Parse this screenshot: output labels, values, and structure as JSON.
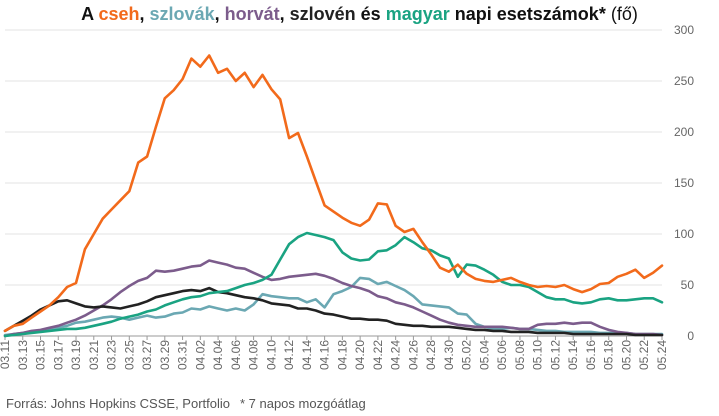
{
  "title": {
    "prefix": "A ",
    "cz": "cseh",
    "sep1": ", ",
    "sk": "szlovák",
    "sep2": ", ",
    "hr": "horvát",
    "sep3": ", ",
    "si": "szlovén",
    "and": " és ",
    "hu": "magyar",
    "tail_bold": " napi esetszámok*",
    "tail_normal": " (fő)"
  },
  "footer": {
    "source": "Forrás: Johns Hopkins CSSE, Portfolio",
    "note": "* 7 napos mozgóátlag"
  },
  "chart_data": {
    "type": "line",
    "ylim": [
      0,
      300
    ],
    "yticks": [
      0,
      50,
      100,
      150,
      200,
      250,
      300
    ],
    "grid": true,
    "x": [
      "03.11",
      "03.12",
      "03.13",
      "03.14",
      "03.15",
      "03.16",
      "03.17",
      "03.18",
      "03.19",
      "03.20",
      "03.21",
      "03.22",
      "03.23",
      "03.24",
      "03.25",
      "03.26",
      "03.27",
      "03.28",
      "03.29",
      "03.30",
      "03.31",
      "04.01",
      "04.02",
      "04.03",
      "04.04",
      "04.05",
      "04.06",
      "04.07",
      "04.08",
      "04.09",
      "04.10",
      "04.11",
      "04.12",
      "04.13",
      "04.14",
      "04.15",
      "04.16",
      "04.17",
      "04.18",
      "04.19",
      "04.20",
      "04.21",
      "04.22",
      "04.23",
      "04.24",
      "04.25",
      "04.26",
      "04.27",
      "04.28",
      "04.29",
      "04.30",
      "05.01",
      "05.02",
      "05.03",
      "05.04",
      "05.05",
      "05.06",
      "05.07",
      "05.08",
      "05.09",
      "05.10",
      "05.11",
      "05.12",
      "05.13",
      "05.14",
      "05.15",
      "05.16",
      "05.17",
      "05.18",
      "05.19",
      "05.20",
      "05.21",
      "05.22",
      "05.23",
      "05.24"
    ],
    "xtick_labels": [
      "03.11",
      "03.13",
      "03.15",
      "03.17",
      "03.19",
      "03.21",
      "03.23",
      "03.25",
      "03.27",
      "03.29",
      "03.31",
      "04.02",
      "04.04",
      "04.06",
      "04.08",
      "04.10",
      "04.12",
      "04.14",
      "04.16",
      "04.18",
      "04.20",
      "04.22",
      "04.24",
      "04.26",
      "04.28",
      "04.30",
      "05.02",
      "05.04",
      "05.06",
      "05.08",
      "05.10",
      "05.12",
      "05.14",
      "05.16",
      "05.18",
      "05.20",
      "05.22",
      "05.24"
    ],
    "series": [
      {
        "name": "cseh",
        "color": "#f26a1b",
        "values": [
          5,
          10,
          12,
          18,
          24,
          30,
          38,
          48,
          52,
          85,
          100,
          115,
          124,
          133,
          142,
          170,
          176,
          205,
          233,
          241,
          252,
          272,
          264,
          275,
          258,
          262,
          250,
          258,
          244,
          256,
          242,
          232,
          194,
          199,
          176,
          152,
          128,
          122,
          116,
          111,
          108,
          114,
          130,
          129,
          108,
          102,
          105,
          92,
          80,
          67,
          63,
          70,
          61,
          56,
          54,
          53,
          55,
          57,
          53,
          50,
          48,
          49,
          48,
          50,
          46,
          43,
          46,
          51,
          52,
          58,
          61,
          65,
          57,
          62,
          69
        ]
      },
      {
        "name": "szlovák",
        "color": "#6ba8b3",
        "values": [
          1,
          2,
          3,
          4,
          5,
          6,
          8,
          10,
          13,
          14,
          16,
          18,
          19,
          18,
          16,
          18,
          20,
          18,
          19,
          22,
          23,
          27,
          26,
          29,
          27,
          25,
          27,
          25,
          31,
          41,
          39,
          38,
          37,
          37,
          33,
          36,
          28,
          41,
          44,
          48,
          57,
          56,
          51,
          53,
          49,
          45,
          39,
          31,
          30,
          29,
          28,
          22,
          21,
          12,
          9,
          7,
          7,
          8,
          7,
          7,
          6,
          5,
          5,
          4,
          4,
          4,
          4,
          3,
          3,
          3,
          3,
          2,
          2,
          2,
          2
        ]
      },
      {
        "name": "horvát",
        "color": "#7c5c8c",
        "values": [
          0,
          2,
          3,
          5,
          6,
          8,
          10,
          13,
          16,
          20,
          25,
          30,
          36,
          43,
          49,
          54,
          57,
          64,
          63,
          64,
          66,
          68,
          69,
          74,
          72,
          70,
          67,
          66,
          62,
          58,
          55,
          56,
          58,
          59,
          60,
          61,
          59,
          56,
          52,
          49,
          47,
          44,
          39,
          37,
          33,
          31,
          28,
          24,
          20,
          16,
          13,
          11,
          10,
          9,
          9,
          9,
          9,
          8,
          7,
          7,
          11,
          12,
          12,
          13,
          12,
          13,
          13,
          9,
          6,
          4,
          3,
          2,
          2,
          2,
          1
        ]
      },
      {
        "name": "szlovén",
        "color": "#222222",
        "values": [
          5,
          10,
          15,
          20,
          26,
          30,
          34,
          35,
          32,
          29,
          28,
          29,
          28,
          27,
          29,
          31,
          34,
          38,
          40,
          42,
          44,
          45,
          44,
          47,
          43,
          42,
          40,
          38,
          37,
          35,
          32,
          31,
          30,
          27,
          27,
          25,
          22,
          21,
          19,
          17,
          17,
          16,
          16,
          15,
          12,
          11,
          10,
          10,
          9,
          9,
          9,
          8,
          7,
          6,
          6,
          5,
          5,
          4,
          4,
          4,
          3,
          3,
          3,
          3,
          2,
          2,
          2,
          2,
          2,
          2,
          2,
          1,
          1,
          1,
          1
        ]
      },
      {
        "name": "magyar",
        "color": "#1aa382",
        "values": [
          0,
          1,
          2,
          3,
          4,
          5,
          6,
          7,
          7,
          8,
          10,
          12,
          14,
          17,
          19,
          21,
          24,
          26,
          30,
          33,
          36,
          38,
          39,
          42,
          43,
          44,
          47,
          50,
          52,
          55,
          60,
          75,
          90,
          97,
          101,
          99,
          97,
          94,
          82,
          76,
          74,
          75,
          83,
          84,
          89,
          97,
          92,
          86,
          84,
          79,
          76,
          58,
          70,
          69,
          65,
          60,
          53,
          50,
          50,
          48,
          43,
          38,
          36,
          36,
          33,
          32,
          33,
          36,
          37,
          35,
          35,
          36,
          37,
          37,
          33
        ]
      }
    ]
  }
}
